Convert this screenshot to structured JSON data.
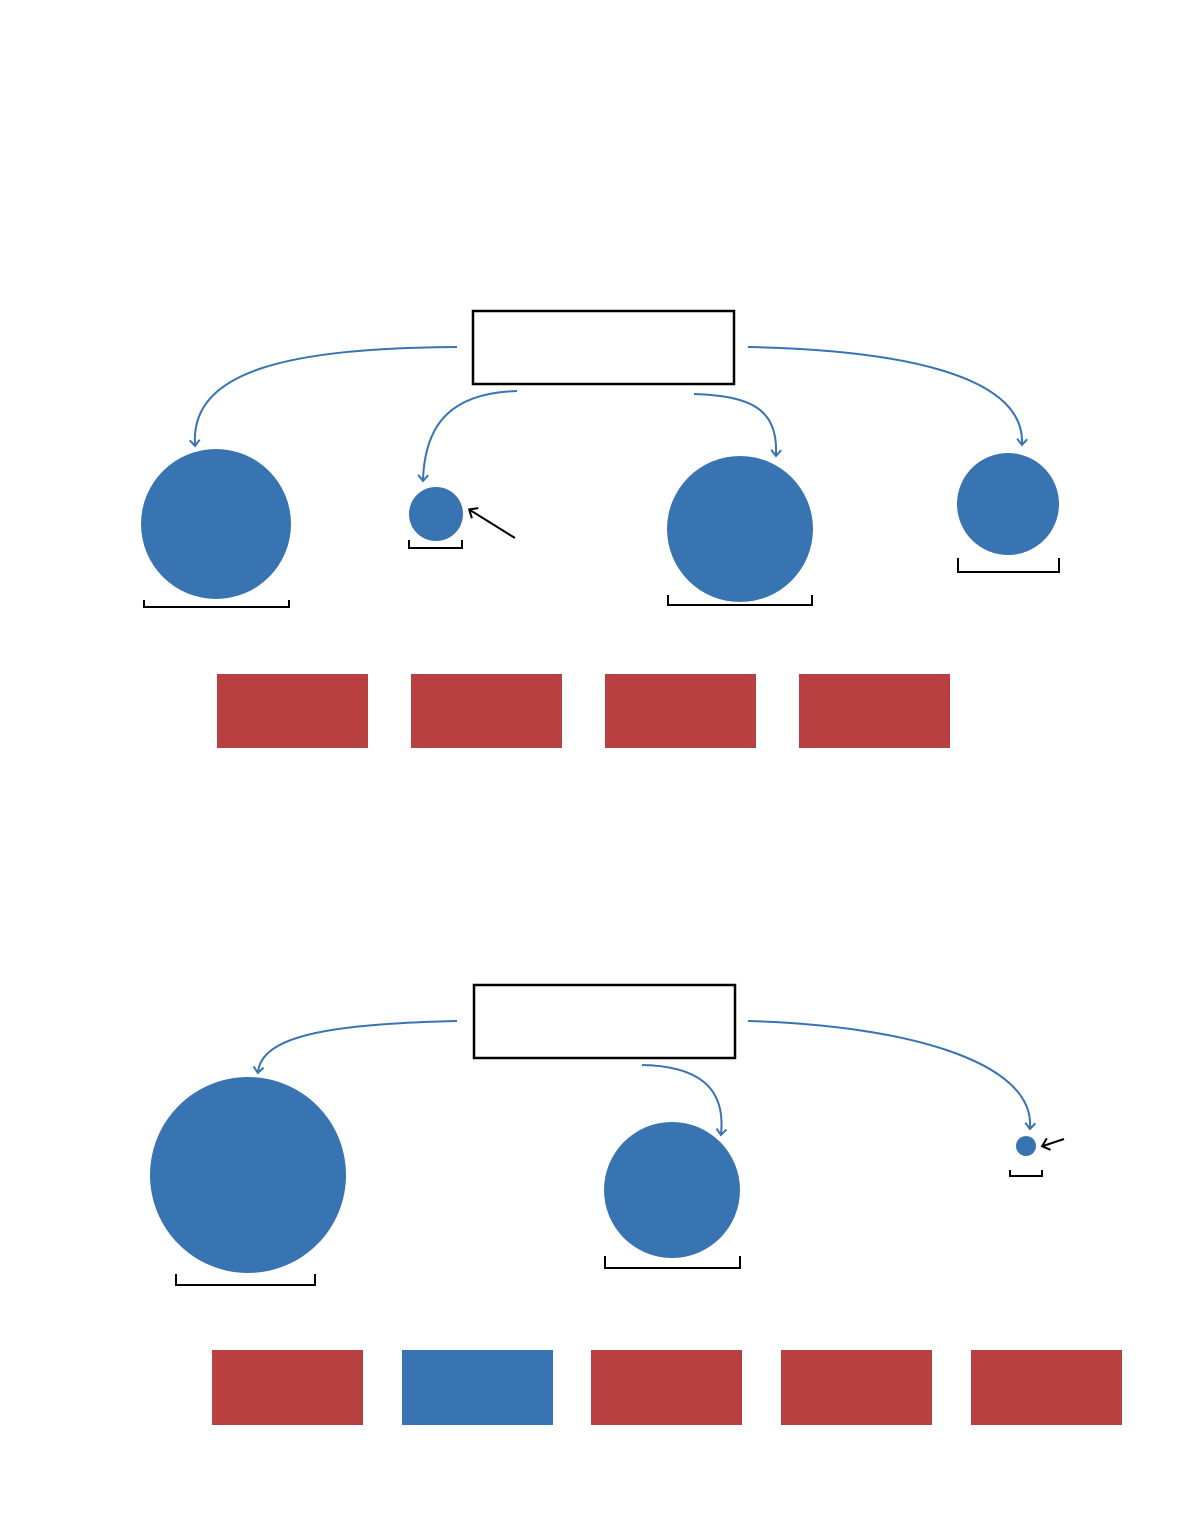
{
  "colors": {
    "circle": "#3873B2",
    "block_red": "#B94040",
    "block_blue": "#3873B2",
    "flow_arrow": "#3873B2",
    "outline": "#000000"
  },
  "icons": {
    "flow_arrow": "curved-arrow-icon",
    "pointer_arrow": "pointer-arrow-icon"
  },
  "top_diagram": {
    "source_box_text": "",
    "circle_count": 4,
    "blocks": [
      "red",
      "red",
      "red",
      "red"
    ]
  },
  "bottom_diagram": {
    "source_box_text": "",
    "circle_count": 3,
    "blocks": [
      "red",
      "blue",
      "red",
      "red",
      "red"
    ]
  }
}
